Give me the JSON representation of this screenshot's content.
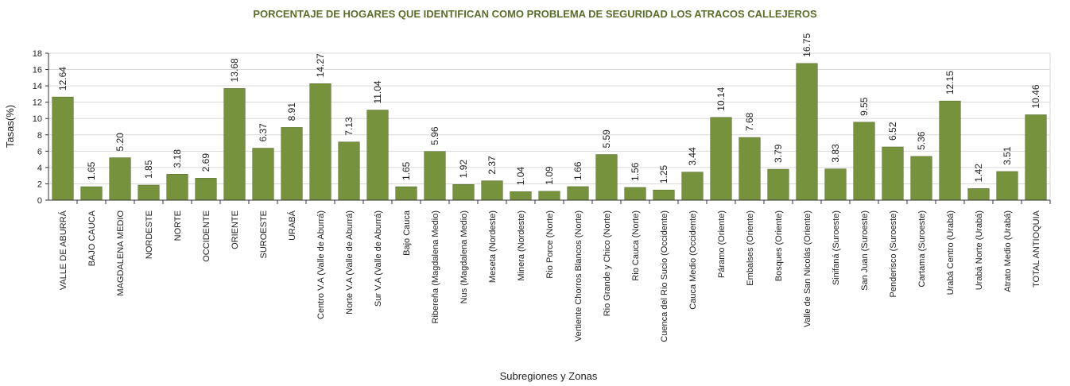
{
  "chart_data": {
    "type": "bar",
    "title": "PORCENTAJE DE HOGARES QUE IDENTIFICAN COMO PROBLEMA DE SEGURIDAD LOS ATRACOS CALLEJEROS",
    "xlabel": "Subregiones y Zonas",
    "ylabel": "Tasas(%)",
    "ylim": [
      0,
      18
    ],
    "yticks": [
      "0",
      "2",
      "4",
      "6",
      "8",
      "10",
      "12",
      "14",
      "16",
      "18"
    ],
    "grid": true,
    "bar_color": "#76923c",
    "categories": [
      "VALLE DE ABURRÁ",
      "BAJO CAUCA",
      "MAGDALENA MEDIO",
      "NORDESTE",
      "NORTE",
      "OCCIDENTE",
      "ORIENTE",
      "SUROESTE",
      "URABÁ",
      "Centro V.A (Valle de Aburrá)",
      "Norte V.A (Valle de Aburrá)",
      "Sur V.A (Valle de Aburrá)",
      "Bajo Cauca",
      "Ribereña (Magdalena Medio)",
      "Nus (Magdalena Medio)",
      "Meseta (Nordeste)",
      "Minera (Nordeste)",
      "Rio Porce (Norte)",
      "Vertiente Chorros Blancos (Norte)",
      "Rio Grande y Chico (Norte)",
      "Rio Cauca (Norte)",
      "Cuenca del Rio Sucio (Occidente)",
      "Cauca Medio (Occidente)",
      "Páramo (Oriente)",
      "Embalses (Oriente)",
      "Bosques (Oriente)",
      "Valle de San Nicolás (Oriente)",
      "Sinifaná (Suroeste)",
      "San Juan (Suroeste)",
      "Penderisco (Suroeste)",
      "Cartama (Suroeste)",
      "Urabá Centro (Urabá)",
      "Urabá Norte (Urabá)",
      "Atrato Medio (Urabá)",
      "TOTAL ANTIOQUIA"
    ],
    "values": [
      12.64,
      1.65,
      5.2,
      1.85,
      3.18,
      2.69,
      13.68,
      6.37,
      8.91,
      14.27,
      7.13,
      11.04,
      1.65,
      5.96,
      1.92,
      2.37,
      1.04,
      1.09,
      1.66,
      5.59,
      1.56,
      1.25,
      3.44,
      10.14,
      7.68,
      3.79,
      16.75,
      3.83,
      9.55,
      6.52,
      5.36,
      12.15,
      1.42,
      3.51,
      10.46
    ],
    "value_labels": [
      "12.64",
      "1.65",
      "5.20",
      "1.85",
      "3.18",
      "2.69",
      "13.68",
      "6.37",
      "8.91",
      "14.27",
      "7.13",
      "11.04",
      "1.65",
      "5.96",
      "1.92",
      "2.37",
      "1.04",
      "1.09",
      "1.66",
      "5.59",
      "1.56",
      "1.25",
      "3.44",
      "10.14",
      "7.68",
      "3.79",
      "16.75",
      "3.83",
      "9.55",
      "6.52",
      "5.36",
      "12.15",
      "1.42",
      "3.51",
      "10.46"
    ]
  }
}
